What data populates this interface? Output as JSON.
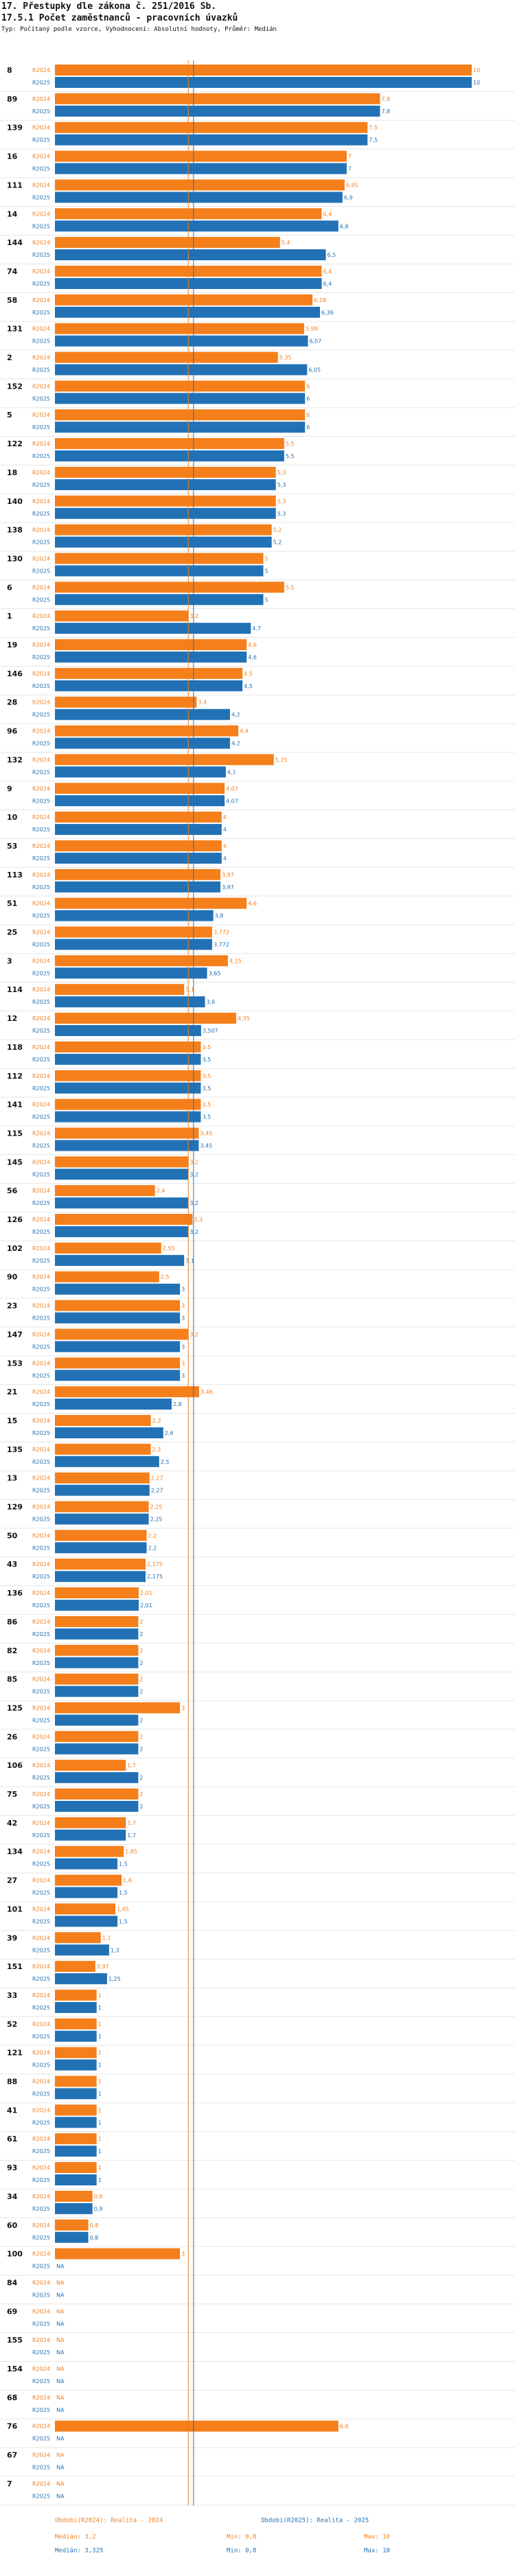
{
  "header": {
    "title": "17. Přestupky dle zákona č. 251/2016 Sb.",
    "subtitle": "17.5.1 Počet zaměstnanců - pracovních úvazků",
    "note": "Typ: Počítaný podle vzorce, Vyhodnocení: Absolutní hodnoty, Průměr: Medián"
  },
  "colors": {
    "r2024": "#f47f1b",
    "r2025": "#2271b5"
  },
  "legend": {
    "series_2024": {
      "name": "Obdobi(R2024): Realita - 2024",
      "median": "Medián: 3,2",
      "min": "Min: 0,8",
      "max": "Max: 10"
    },
    "series_2025": {
      "name": "Obdobi(R2025): Realita - 2025",
      "median": "Medián: 3,325",
      "min": "Min: 0,8",
      "max": "Max: 10"
    }
  },
  "chart_data": {
    "type": "bar",
    "orientation": "horizontal",
    "xlim": [
      0,
      10
    ],
    "median_lines": [
      3.2,
      3.325
    ],
    "series": [
      {
        "name": "R2024",
        "label": "R2024"
      },
      {
        "name": "R2025",
        "label": "R2025"
      }
    ],
    "categories": [
      "8",
      "89",
      "139",
      "16",
      "111",
      "14",
      "144",
      "74",
      "58",
      "131",
      "2",
      "152",
      "5",
      "122",
      "18",
      "140",
      "138",
      "130",
      "6",
      "1",
      "19",
      "146",
      "28",
      "96",
      "132",
      "9",
      "10",
      "53",
      "113",
      "51",
      "25",
      "3",
      "114",
      "12",
      "118",
      "112",
      "141",
      "115",
      "145",
      "56",
      "126",
      "102",
      "90",
      "23",
      "147",
      "153",
      "21",
      "15",
      "135",
      "13",
      "129",
      "50",
      "43",
      "136",
      "86",
      "82",
      "85",
      "125",
      "26",
      "106",
      "75",
      "42",
      "134",
      "27",
      "101",
      "39",
      "151",
      "33",
      "52",
      "121",
      "88",
      "41",
      "61",
      "93",
      "34",
      "60",
      "100",
      "84",
      "69",
      "155",
      "154",
      "68",
      "76",
      "67",
      "7"
    ],
    "values_2024": [
      10,
      7.8,
      7.5,
      7,
      6.95,
      6.4,
      5.4,
      6.4,
      6.18,
      5.98,
      5.35,
      6,
      6,
      5.5,
      5.3,
      5.3,
      5.2,
      5,
      5.5,
      3.2,
      4.6,
      4.5,
      3.4,
      4.4,
      5.25,
      4.07,
      4,
      4,
      3.97,
      4.6,
      3.772,
      4.15,
      3.1,
      4.35,
      3.5,
      3.5,
      3.5,
      3.45,
      3.2,
      2.4,
      3.3,
      2.55,
      2.5,
      3,
      3.2,
      3,
      3.46,
      2.3,
      2.3,
      2.27,
      2.25,
      2.2,
      2.175,
      2.01,
      2,
      2,
      2,
      3,
      2,
      1.7,
      2,
      1.7,
      1.65,
      1.6,
      1.45,
      1.1,
      0.97,
      1,
      1,
      1,
      1,
      1,
      1,
      1,
      0.9,
      0.8,
      3,
      null,
      null,
      null,
      null,
      null,
      6.8,
      null,
      null
    ],
    "values_2025": [
      10,
      7.8,
      7.5,
      7,
      6.9,
      6.8,
      6.5,
      6.4,
      6.36,
      6.07,
      6.05,
      6,
      6,
      5.5,
      5.3,
      5.3,
      5.2,
      5,
      5,
      4.7,
      4.6,
      4.5,
      4.2,
      4.2,
      4.1,
      4.07,
      4,
      4,
      3.97,
      3.8,
      3.772,
      3.65,
      3.6,
      3.507,
      3.5,
      3.5,
      3.5,
      3.45,
      3.2,
      3.2,
      3.2,
      3.1,
      3,
      3,
      3,
      3,
      2.8,
      2.6,
      2.5,
      2.27,
      2.25,
      2.2,
      2.175,
      2.01,
      2,
      2,
      2,
      2,
      2,
      2,
      2,
      1.7,
      1.5,
      1.5,
      1.5,
      1.3,
      1.25,
      1,
      1,
      1,
      1,
      1,
      1,
      1,
      0.9,
      0.8,
      null,
      null,
      null,
      null,
      null,
      null,
      null,
      null,
      null
    ],
    "labels_2024": [
      "10",
      "7,8",
      "7,5",
      "7",
      "6,95",
      "6,4",
      "5,4",
      "6,4",
      "6,18",
      "5,98",
      "5,35",
      "6",
      "6",
      "5,5",
      "5,3",
      "5,3",
      "5,2",
      "5",
      "5,5",
      "3,2",
      "4,6",
      "4,5",
      "3,4",
      "4,4",
      "5,25",
      "4,07",
      "4",
      "4",
      "3,97",
      "4,6",
      "3,772",
      "4,15",
      "3,1",
      "4,35",
      "3,5",
      "3,5",
      "3,5",
      "3,45",
      "3,2",
      "2,4",
      "3,3",
      "2,55",
      "2,5",
      "3",
      "3,2",
      "3",
      "3,46",
      "2,3",
      "2,3",
      "2,27",
      "2,25",
      "2,2",
      "2,175",
      "2,01",
      "2",
      "2",
      "2",
      "3",
      "2",
      "1,7",
      "2",
      "1,7",
      "1,65",
      "1,6",
      "1,45",
      "1,1",
      "0,97",
      "1",
      "1",
      "1",
      "1",
      "1",
      "1",
      "1",
      "0,9",
      "0,8",
      "3",
      "NA",
      "NA",
      "NA",
      "NA",
      "NA",
      "6,8",
      "NA",
      "NA"
    ],
    "labels_2025": [
      "10",
      "7,8",
      "7,5",
      "7",
      "6,9",
      "6,8",
      "6,5",
      "6,4",
      "6,36",
      "6,07",
      "6,05",
      "6",
      "6",
      "5,5",
      "5,3",
      "5,3",
      "5,2",
      "5",
      "5",
      "4,7",
      "4,6",
      "4,5",
      "4,2",
      "4,2",
      "4,1",
      "4,07",
      "4",
      "4",
      "3,97",
      "3,8",
      "3,772",
      "3,65",
      "3,6",
      "3,507",
      "3,5",
      "3,5",
      "3,5",
      "3,45",
      "3,2",
      "3,2",
      "3,2",
      "3,1",
      "3",
      "3",
      "3",
      "3",
      "2,8",
      "2,6",
      "2,5",
      "2,27",
      "2,25",
      "2,2",
      "2,175",
      "2,01",
      "2",
      "2",
      "2",
      "2",
      "2",
      "2",
      "2",
      "1,7",
      "1,5",
      "1,5",
      "1,5",
      "1,3",
      "1,25",
      "1",
      "1",
      "1",
      "1",
      "1",
      "1",
      "1",
      "0,9",
      "0,8",
      "NA",
      "NA",
      "NA",
      "NA",
      "NA",
      "NA",
      "NA",
      "NA",
      "NA"
    ]
  }
}
